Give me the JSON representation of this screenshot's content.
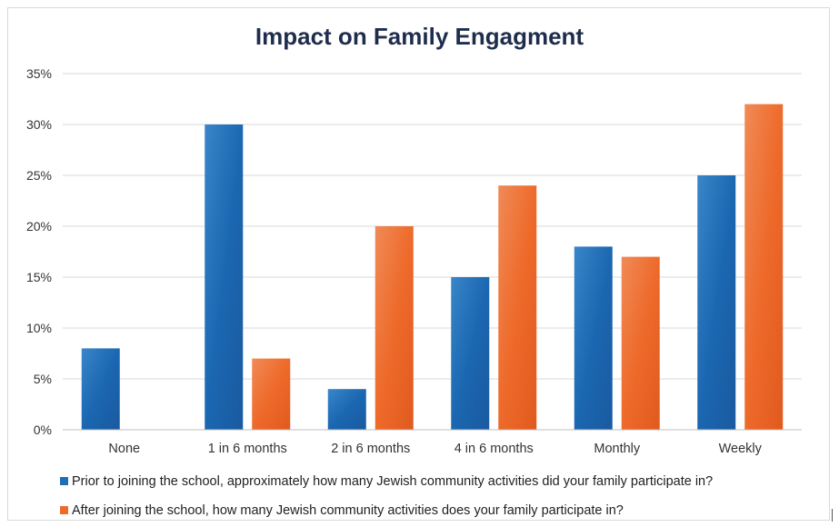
{
  "chart_data": {
    "type": "bar",
    "title": "Impact on Family Engagment",
    "categories": [
      "None",
      "1 in 6 months",
      "2 in 6 months",
      "4 in 6 months",
      "Monthly",
      "Weekly"
    ],
    "series": [
      {
        "name": "Prior to joining the school, approximately how many Jewish community activities did your family participate in?",
        "color": "#1f6fb8",
        "values": [
          8,
          30,
          4,
          15,
          18,
          25
        ]
      },
      {
        "name": "After joining the school, how many Jewish community activities does your family participate in?",
        "color": "#ee6a2a",
        "values": [
          0,
          7,
          20,
          24,
          17,
          32
        ]
      }
    ],
    "yticks": [
      "0%",
      "5%",
      "10%",
      "15%",
      "20%",
      "25%",
      "30%",
      "35%"
    ],
    "ylim": [
      0,
      35
    ],
    "y_unit": "%",
    "grid": true,
    "legend_position": "bottom"
  }
}
